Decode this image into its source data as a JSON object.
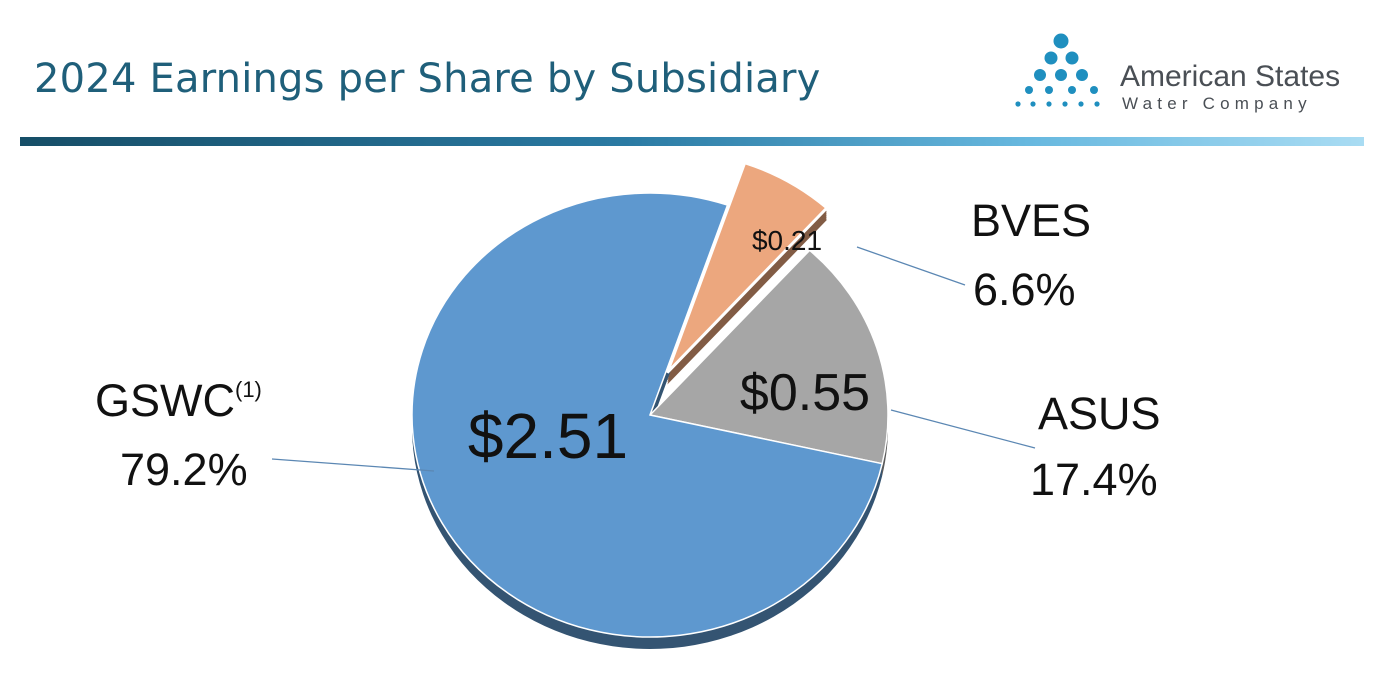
{
  "header": {
    "title": "2024 Earnings per Share by Subsidiary"
  },
  "logo": {
    "name": "American States",
    "sub": "Water Company",
    "icon": "water-drops-icon",
    "color": "#1f8fbf"
  },
  "chart_data": {
    "type": "pie",
    "title": "2024 Earnings per Share by Subsidiary",
    "slices": [
      {
        "name": "GSWC",
        "footnote": "(1)",
        "value": 2.51,
        "value_label": "$2.51",
        "percent_label": "79.2%",
        "color": "#5e98cf",
        "exploded": false
      },
      {
        "name": "ASUS",
        "footnote": "",
        "value": 0.55,
        "value_label": "$0.55",
        "percent_label": "17.4%",
        "color": "#a6a6a6",
        "exploded": false
      },
      {
        "name": "BVES",
        "footnote": "",
        "value": 0.21,
        "value_label": "$0.21",
        "percent_label": "6.6%",
        "color": "#eca77e",
        "exploded": true
      }
    ]
  }
}
